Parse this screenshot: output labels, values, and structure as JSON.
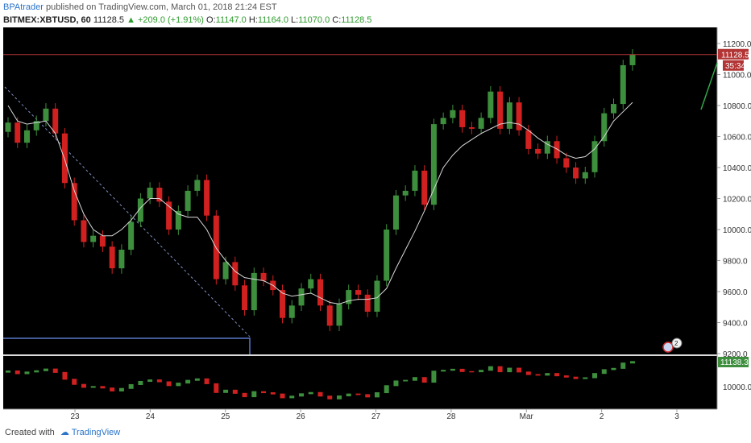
{
  "header": {
    "author": "BPAtrader",
    "published_text": "published on TradingView.com, March 01, 2018 21:24 EST"
  },
  "symbol_bar": {
    "symbol": "BITMEX:XBTUSD, 60",
    "last": "11128.5",
    "change": "▲ +209.0 (+1.91%)",
    "open_label": "O:",
    "open": "11147.0",
    "high_label": "H:",
    "high": "11164.0",
    "low_label": "L:",
    "low": "11070.0",
    "close_label": "C:",
    "close": "11128.5"
  },
  "price_axis": {
    "ticks": [
      "11200.0",
      "11000.0",
      "10800.0",
      "10600.0",
      "10400.0",
      "10200.0",
      "10000.0",
      "9800.0",
      "9600.0",
      "9400.0",
      "9200.0"
    ],
    "last_price_label": "11128.5",
    "countdown_label": "35:34"
  },
  "indicator_axis": {
    "ticks": [
      "10000.00"
    ],
    "value_label": "11138.35"
  },
  "time_axis": {
    "ticks": [
      "23",
      "24",
      "25",
      "26",
      "27",
      "28",
      "Mar",
      "2",
      "3"
    ]
  },
  "events_badge": {
    "label": "2"
  },
  "footer": {
    "created_with": "Created with",
    "brand": "TradingView"
  },
  "colors": {
    "background": "#000000",
    "up_candle": "#3d8f3d",
    "down_candle": "#d02020",
    "moving_average": "#d8d8d8",
    "last_price_line": "#b23434",
    "trend_line": "#8090c0",
    "support_line": "#5b78c8",
    "projection_line": "#2ea84a",
    "axis_text": "#333333"
  },
  "chart_data": {
    "type": "line",
    "series": [
      {
        "values": [
          10690,
          10560,
          10640,
          10700,
          10780,
          10620,
          10300,
          10060,
          9920,
          9960,
          9890,
          9750,
          9870,
          10050,
          10200,
          10270,
          10180,
          10000,
          10120,
          10250,
          10320,
          10090,
          9680,
          9790,
          9640,
          9480,
          9720,
          9670,
          9610,
          9430,
          9510,
          9620,
          9680,
          9510,
          9380,
          9520,
          9610,
          9580,
          9470,
          9670,
          10000,
          10220,
          10250,
          10380,
          10160,
          10680,
          10720,
          10770,
          10660,
          10650,
          10720,
          10890,
          10650,
          10820,
          10640,
          10520,
          10490,
          10570,
          10460,
          10400,
          10330,
          10370,
          10570,
          10750,
          10810,
          11060,
          11128.5
        ]
      },
      {
        "values": [
          10800,
          10700,
          10680,
          10690,
          10700,
          10620,
          10450,
          10250,
          10100,
          10000,
          9960,
          9960,
          10000,
          10060,
          10140,
          10200,
          10200,
          10150,
          10100,
          10080,
          10080,
          10000,
          9880,
          9800,
          9730,
          9690,
          9680,
          9670,
          9640,
          9590,
          9570,
          9580,
          9590,
          9560,
          9530,
          9520,
          9540,
          9550,
          9550,
          9560,
          9620,
          9750,
          9870,
          9990,
          10120,
          10260,
          10400,
          10480,
          10540,
          10580,
          10620,
          10650,
          10680,
          10690,
          10680,
          10640,
          10590,
          10550,
          10520,
          10480,
          10460,
          10470,
          10520,
          10600,
          10700,
          10760,
          10820
        ]
      }
    ],
    "x_ticks": [
      "23",
      "24",
      "25",
      "26",
      "27",
      "28",
      "Mar",
      "2",
      "3"
    ],
    "ylim": [
      9200,
      11200
    ],
    "y_ticks": [
      9200,
      9400,
      9600,
      9800,
      10000,
      10200,
      10400,
      10600,
      10800,
      11000,
      11200
    ],
    "last_price": 11128.5,
    "grid": false,
    "xlabel": "",
    "ylabel": ""
  }
}
